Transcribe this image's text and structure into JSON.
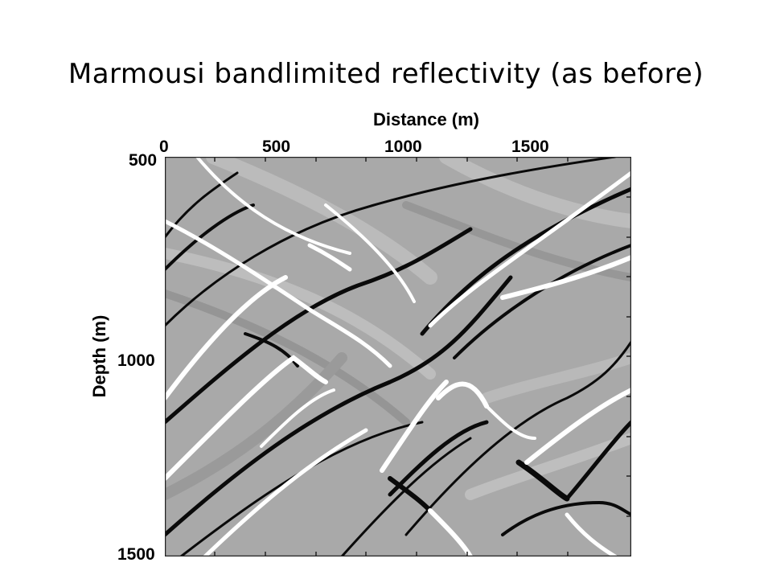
{
  "slide": {
    "title": "Marmousi bandlimited reflectivity (as before)"
  },
  "chart_data": {
    "type": "heatmap",
    "description_colormap": "grayscale",
    "xlabel": "Distance (m)",
    "ylabel": "Depth (m)",
    "xlim": [
      0,
      1860
    ],
    "ylim": [
      500,
      1500
    ],
    "xticks": [
      0,
      500,
      1000,
      1500
    ],
    "yticks": [
      500,
      1000,
      1500
    ],
    "xtick_labels": [
      "0",
      "500",
      "1000",
      "1500"
    ],
    "ytick_labels": [
      "500",
      "1000",
      "1500"
    ]
  }
}
